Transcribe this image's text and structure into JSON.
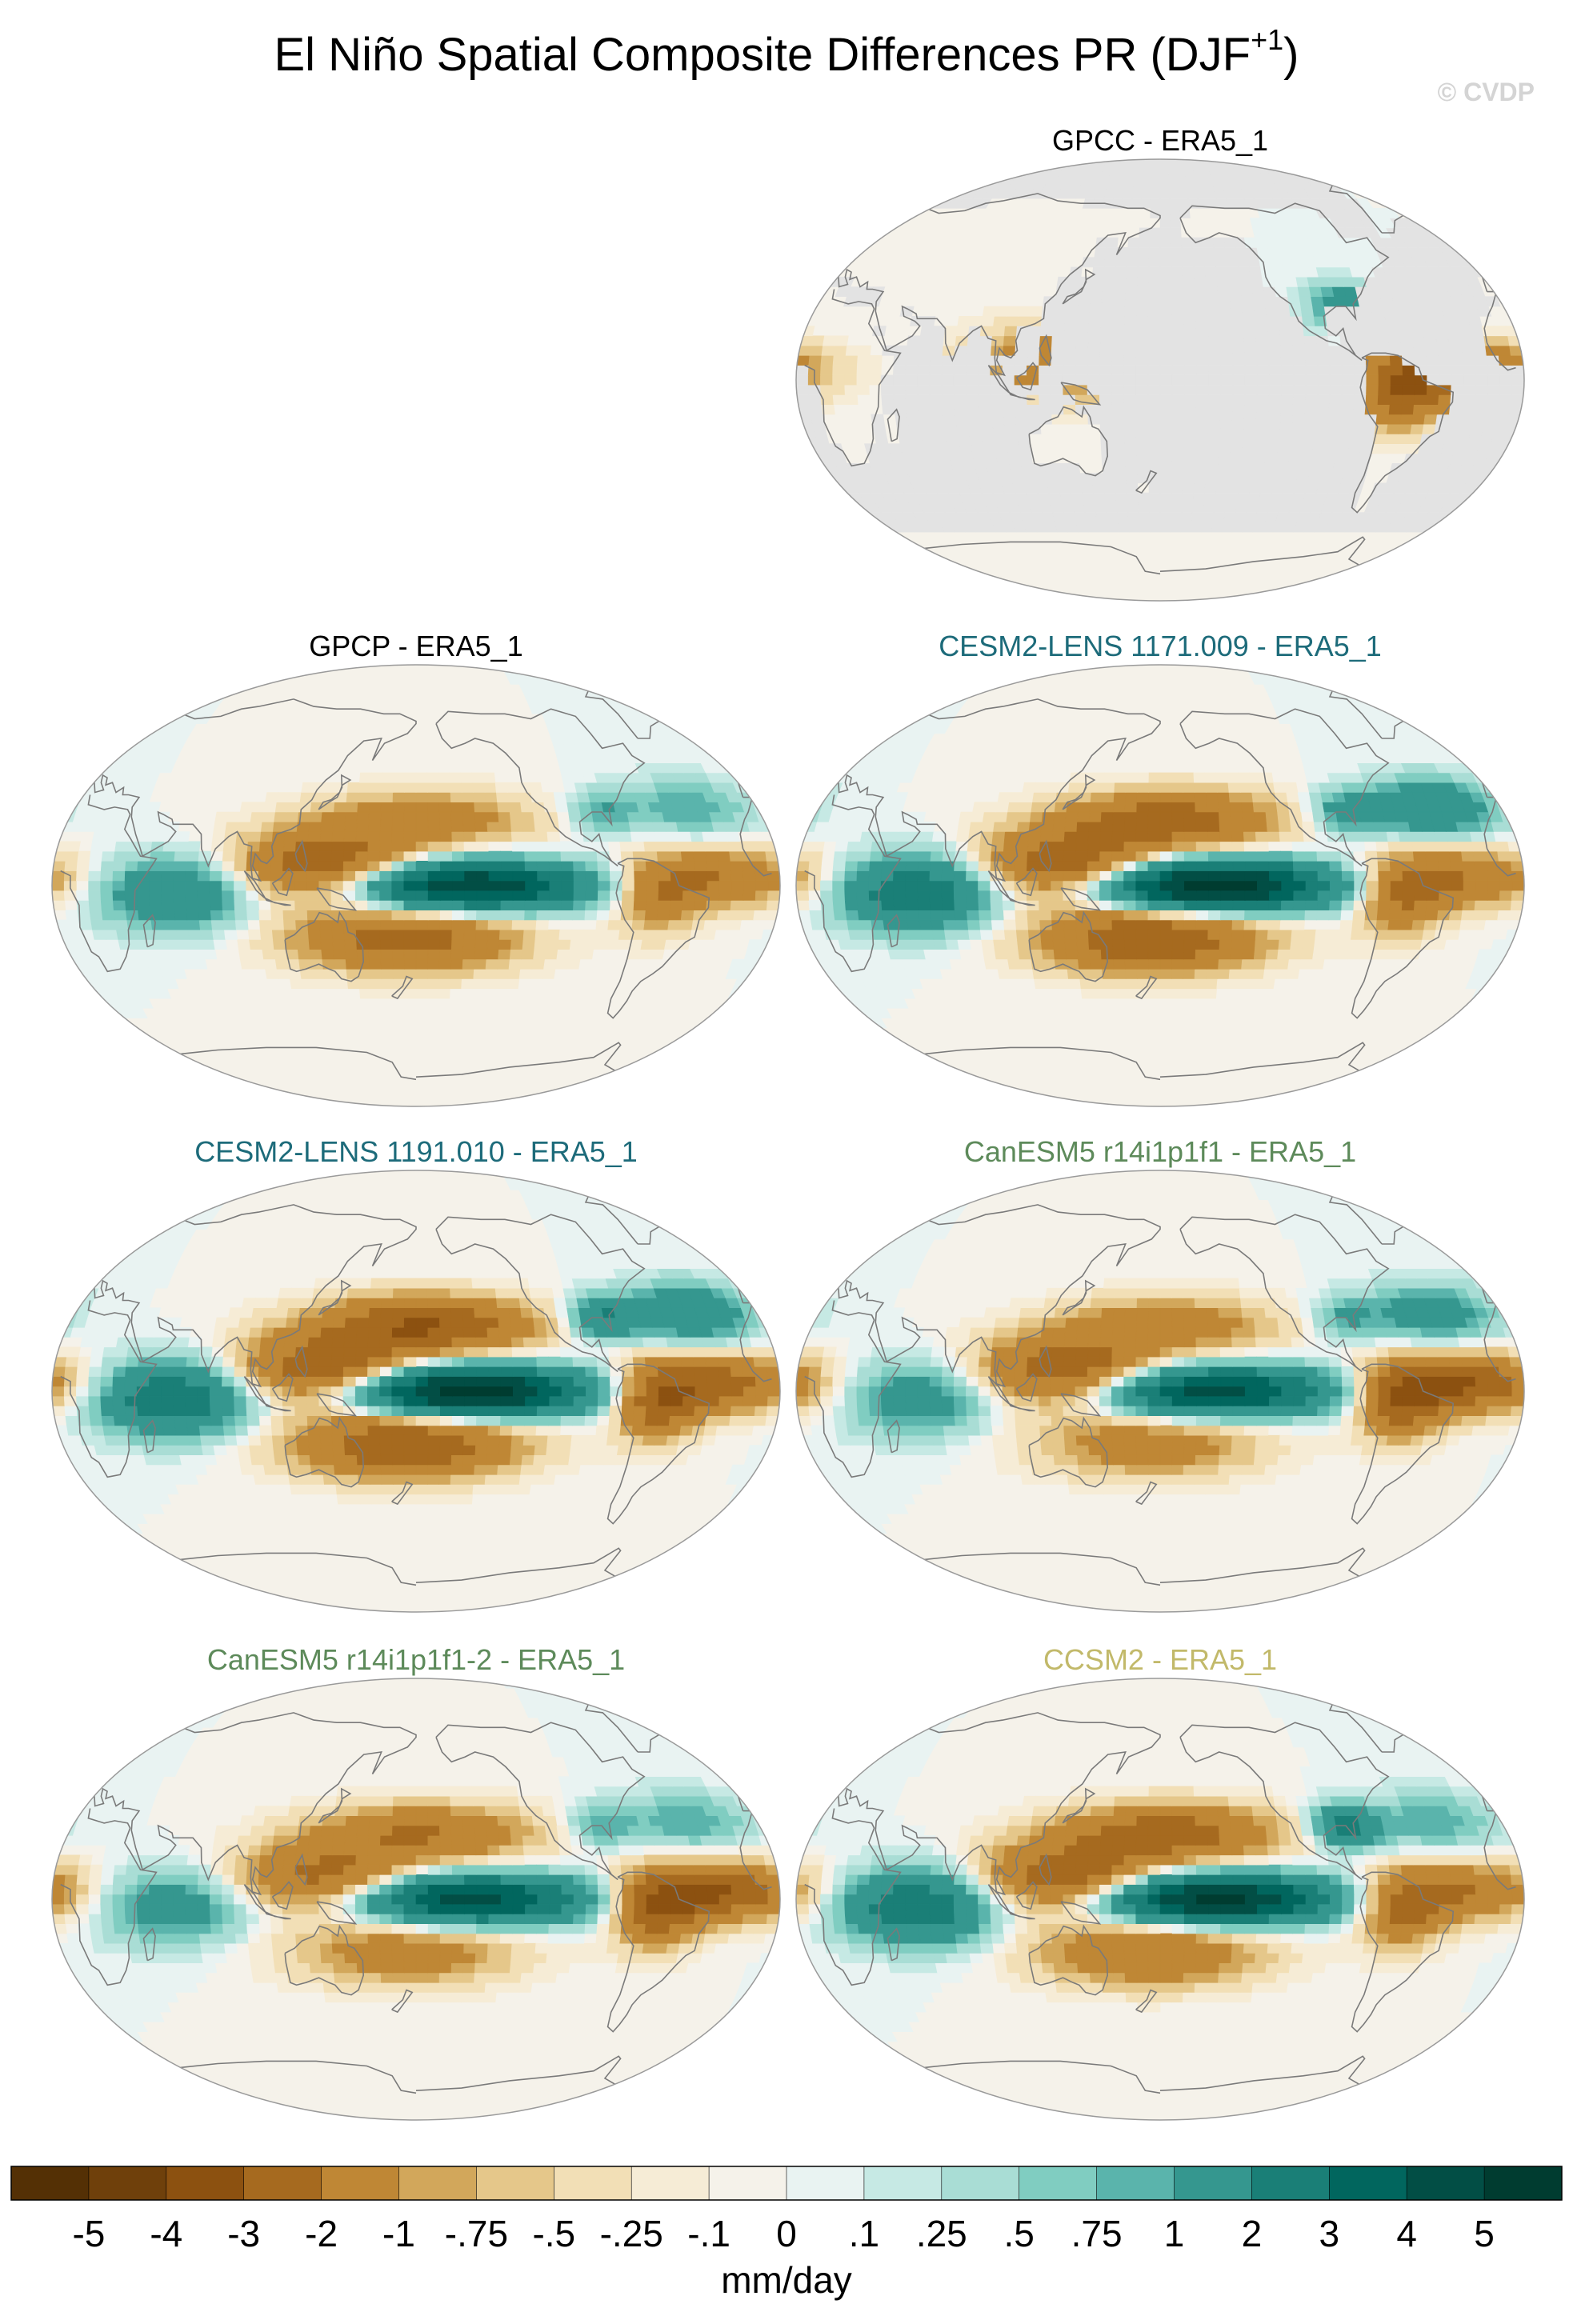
{
  "figure": {
    "title_main": "El Niño Spatial Composite Differences PR (DJF",
    "title_sup": "+1",
    "title_close": ")",
    "watermark": "© CVDP"
  },
  "chart_data": [
    {
      "type": "heatmap",
      "panel": "GPCC - ERA5_1",
      "title_color": "#000000",
      "projection": "Robinson (Pacific-centered)",
      "coverage": "land-only",
      "anomaly_pattern": {
        "central_pacific_wet": 0,
        "west_pacific_dry": 2,
        "south_pacific_dry": 0,
        "north_pacific_dry": 0,
        "atlantic_wet": 0,
        "tropical_atlantic_dry": 2.5,
        "indian_ocean_wet": 0,
        "amazon_dry": 2.5,
        "us_southeast_wet": 2
      }
    },
    {
      "type": "heatmap",
      "panel": "GPCP - ERA5_1",
      "title_color": "#000000",
      "projection": "Robinson (Pacific-centered)",
      "coverage": "global",
      "anomaly_pattern": {
        "central_pacific_wet": 5,
        "west_pacific_dry": 3,
        "south_pacific_dry": 2.5,
        "north_pacific_dry": 1.5,
        "atlantic_wet": 1,
        "tropical_atlantic_dry": 2,
        "indian_ocean_wet": 2,
        "amazon_dry": 1.5,
        "us_southeast_wet": 1
      }
    },
    {
      "type": "heatmap",
      "panel": "CESM2-LENS 1171.009 - ERA5_1",
      "title_color": "#1d6b7a",
      "projection": "Robinson (Pacific-centered)",
      "coverage": "global",
      "anomaly_pattern": {
        "central_pacific_wet": 6,
        "west_pacific_dry": 3,
        "south_pacific_dry": 3,
        "north_pacific_dry": 2.5,
        "atlantic_wet": 2,
        "tropical_atlantic_dry": 2,
        "indian_ocean_wet": 3,
        "amazon_dry": 2,
        "us_southeast_wet": 1.5
      }
    },
    {
      "type": "heatmap",
      "panel": "CESM2-LENS 1191.010 - ERA5_1",
      "title_color": "#1d6b7a",
      "projection": "Robinson (Pacific-centered)",
      "coverage": "global",
      "anomaly_pattern": {
        "central_pacific_wet": 6,
        "west_pacific_dry": 3,
        "south_pacific_dry": 3,
        "north_pacific_dry": 3,
        "atlantic_wet": 2,
        "tropical_atlantic_dry": 2.5,
        "indian_ocean_wet": 3,
        "amazon_dry": 2.5,
        "us_southeast_wet": 2
      }
    },
    {
      "type": "heatmap",
      "panel": "CanESM5 r14i1p1f1 - ERA5_1",
      "title_color": "#5d8a5a",
      "projection": "Robinson (Pacific-centered)",
      "coverage": "global",
      "anomaly_pattern": {
        "central_pacific_wet": 4.5,
        "west_pacific_dry": 3,
        "south_pacific_dry": 1.5,
        "north_pacific_dry": 1.5,
        "atlantic_wet": 1.5,
        "tropical_atlantic_dry": 3,
        "indian_ocean_wet": 1.5,
        "amazon_dry": 2.5,
        "us_southeast_wet": 1
      }
    },
    {
      "type": "heatmap",
      "panel": "CanESM5 r14i1p1f1-2 - ERA5_1",
      "title_color": "#5d8a5a",
      "projection": "Robinson (Pacific-centered)",
      "coverage": "global",
      "anomaly_pattern": {
        "central_pacific_wet": 4.5,
        "west_pacific_dry": 2.5,
        "south_pacific_dry": 1.5,
        "north_pacific_dry": 2,
        "atlantic_wet": 1,
        "tropical_atlantic_dry": 3,
        "indian_ocean_wet": 1.5,
        "amazon_dry": 2.5,
        "us_southeast_wet": 1
      }
    },
    {
      "type": "heatmap",
      "panel": "CCSM2 - ERA5_1",
      "title_color": "#c2b96a",
      "projection": "Robinson (Pacific-centered)",
      "coverage": "global",
      "anomaly_pattern": {
        "central_pacific_wet": 5.5,
        "west_pacific_dry": 3,
        "south_pacific_dry": 2,
        "north_pacific_dry": 2.5,
        "atlantic_wet": 1,
        "tropical_atlantic_dry": 2,
        "indian_ocean_wet": 3,
        "amazon_dry": 2,
        "us_southeast_wet": 2.5
      }
    }
  ],
  "colorbar": {
    "unit_label": "mm/day",
    "tick_labels": [
      "-5",
      "-4",
      "-3",
      "-2",
      "-1",
      "-.75",
      "-.5",
      "-.25",
      "-.1",
      "0",
      ".1",
      ".25",
      ".5",
      ".75",
      "1",
      "2",
      "3",
      "4",
      "5"
    ],
    "colors": [
      "#543005",
      "#6f400b",
      "#8c5110",
      "#a66a1f",
      "#bf8735",
      "#d2a75b",
      "#e5c78a",
      "#f2dfb6",
      "#f6ecd6",
      "#f5f2ea",
      "#e9f3f2",
      "#c6e9e4",
      "#a9ddd5",
      "#80cdc1",
      "#5ab4ac",
      "#35978f",
      "#1a7f77",
      "#01665e",
      "#024e45",
      "#003c30"
    ],
    "missing_color": "#e3e3e3"
  }
}
